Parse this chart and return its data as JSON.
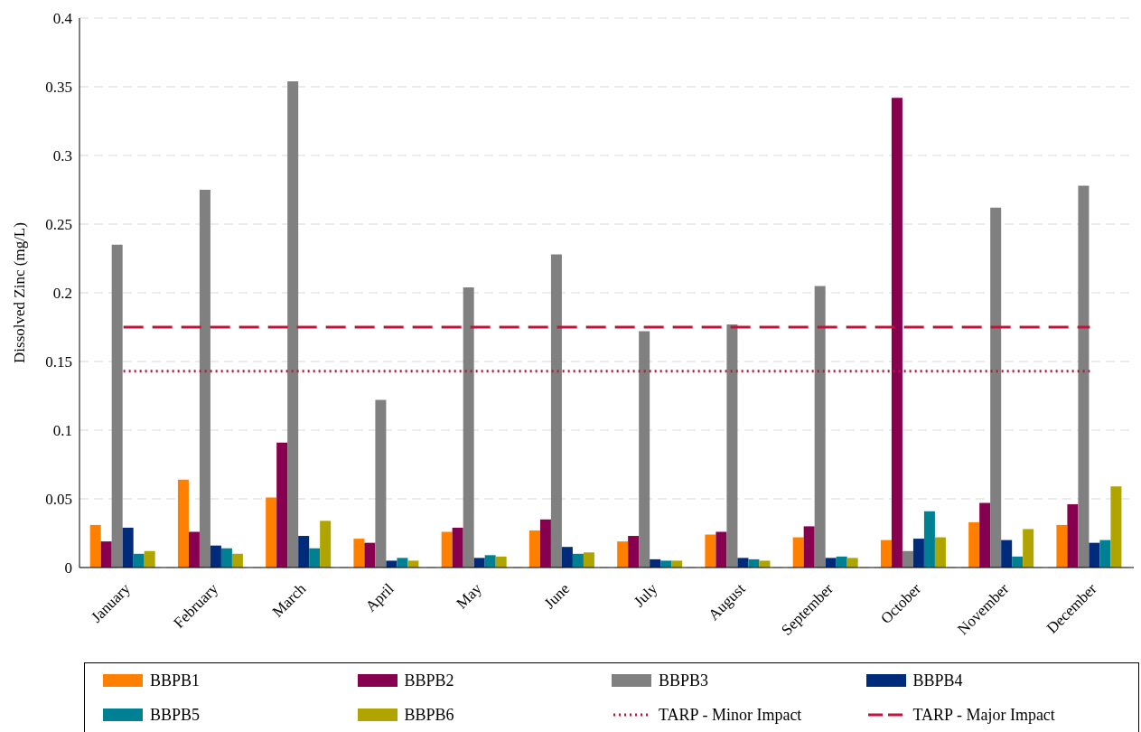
{
  "chart_data": {
    "type": "bar",
    "ylabel": "Dissolved Zinc (mg/L)",
    "categories": [
      "January",
      "February",
      "March",
      "April",
      "May",
      "June",
      "July",
      "August",
      "September",
      "October",
      "November",
      "December"
    ],
    "series": [
      {
        "name": "BBPB1",
        "color": "#ff8000",
        "values": [
          0.031,
          0.064,
          0.051,
          0.021,
          0.026,
          0.027,
          0.019,
          0.024,
          0.022,
          0.02,
          0.033,
          0.031
        ]
      },
      {
        "name": "BBPB2",
        "color": "#86004f",
        "values": [
          0.019,
          0.026,
          0.091,
          0.018,
          0.029,
          0.035,
          0.023,
          0.026,
          0.03,
          0.342,
          0.047,
          0.046
        ]
      },
      {
        "name": "BBPB3",
        "color": "#808080",
        "values": [
          0.235,
          0.275,
          0.354,
          0.122,
          0.204,
          0.228,
          0.172,
          0.177,
          0.205,
          0.012,
          0.262,
          0.278
        ]
      },
      {
        "name": "BBPB4",
        "color": "#002b7a",
        "values": [
          0.029,
          0.016,
          0.023,
          0.005,
          0.007,
          0.015,
          0.006,
          0.007,
          0.007,
          0.021,
          0.02,
          0.018
        ]
      },
      {
        "name": "BBPB5",
        "color": "#008093",
        "values": [
          0.01,
          0.014,
          0.014,
          0.007,
          0.009,
          0.01,
          0.005,
          0.006,
          0.008,
          0.041,
          0.008,
          0.02
        ]
      },
      {
        "name": "BBPB6",
        "color": "#b0a500",
        "values": [
          0.012,
          0.01,
          0.034,
          0.005,
          0.008,
          0.011,
          0.005,
          0.005,
          0.007,
          0.022,
          0.028,
          0.059
        ]
      },
      {
        "name": "TARP - Minor Impact",
        "type": "line",
        "line_style": "dotted",
        "color": "#c0143c",
        "values": [
          0.143,
          0.143,
          0.143,
          0.143,
          0.143,
          0.143,
          0.143,
          0.143,
          0.143,
          0.143,
          0.143,
          0.143
        ]
      },
      {
        "name": "TARP - Major Impact",
        "type": "line",
        "line_style": "dashed",
        "color": "#c0143c",
        "values": [
          0.175,
          0.175,
          0.175,
          0.175,
          0.175,
          0.175,
          0.175,
          0.175,
          0.175,
          0.175,
          0.175,
          0.175
        ]
      }
    ],
    "ylim": [
      0,
      0.4
    ],
    "yticks": [
      0,
      0.05,
      0.1,
      0.15,
      0.2,
      0.25,
      0.3,
      0.35,
      0.4
    ],
    "grid": "y",
    "legend": "bottom",
    "marker": "none"
  }
}
